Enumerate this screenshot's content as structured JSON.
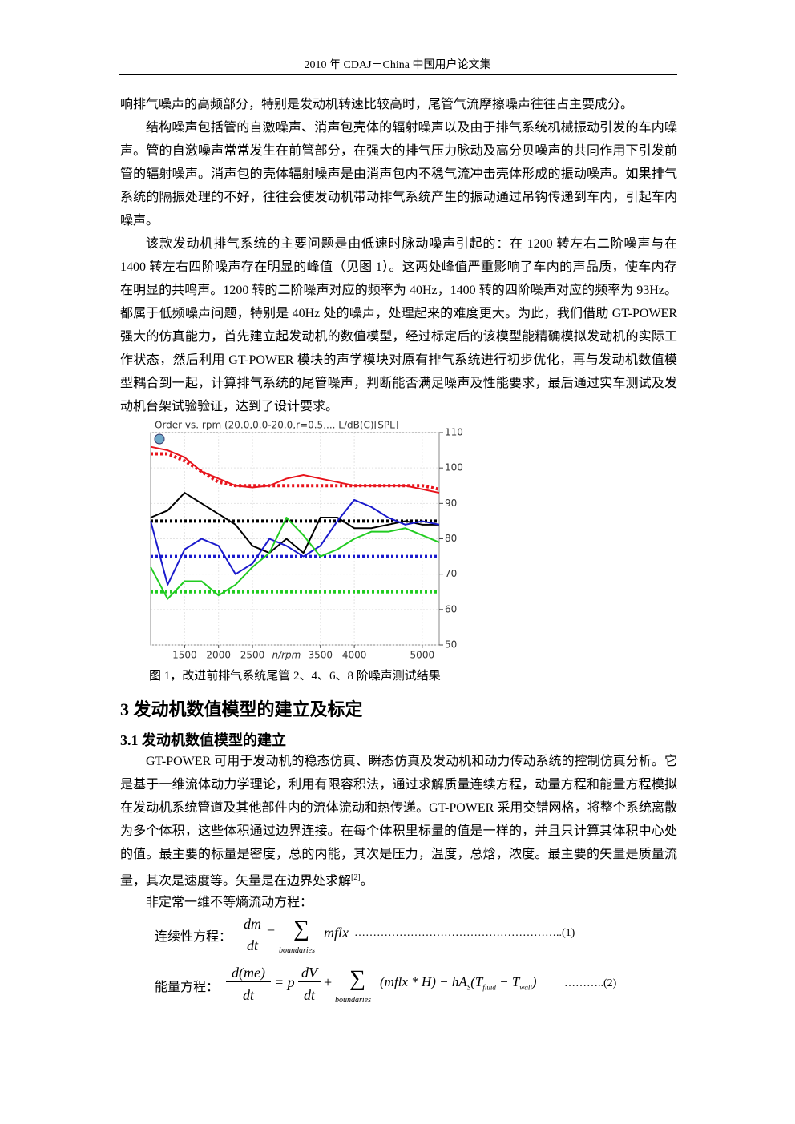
{
  "header": {
    "title": "2010 年  CDAJ－China  中国用户论文集"
  },
  "paragraphs": [
    {
      "text": "响排气噪声的高频部分，特别是发动机转速比较高时，尾管气流摩擦噪声往往占主要成分。"
    },
    {
      "text": "结构噪声包括管的自激噪声、消声包壳体的辐射噪声以及由于排气系统机械振动引发的车内噪声。管的自激噪声常常发生在前管部分，在强大的排气压力脉动及高分贝噪声的共同作用下引发前管的辐射噪声。消声包的壳体辐射噪声是由消声包内不稳气流冲击壳体形成的振动噪声。如果排气系统的隔振处理的不好，往往会使发动机带动排气系统产生的振动通过吊钩传递到车内，引起车内噪声。"
    },
    {
      "text": "该款发动机排气系统的主要问题是由低速时脉动噪声引起的：在 1200 转左右二阶噪声与在 1400 转左右四阶噪声存在明显的峰值（见图 1）。这两处峰值严重影响了车内的声品质，使车内存在明显的共鸣声。1200 转的二阶噪声对应的频率为 40Hz，1400 转的四阶噪声对应的频率为 93Hz。都属于低频噪声问题，特别是 40Hz 处的噪声，处理起来的难度更大。为此，我们借助 GT-POWER 强大的仿真能力，首先建立起发动机的数值模型，经过标定后的该模型能精确模拟发动机的实际工作状态，然后利用 GT-POWER 模块的声学模块对原有排气系统进行初步优化，再与发动机数值模型耦合到一起，计算排气系统的尾管噪声，判断能否满足噪声及性能要求，最后通过实车测试及发动机台架试验验证，达到了设计要求。"
    }
  ],
  "chart_data": {
    "type": "line",
    "title": "Order vs. rpm (20.0,0.0-20.0,r=0.5,...  L/dB(C)[SPL]",
    "x_label": "n/rpm",
    "x": [
      1000,
      1250,
      1500,
      1750,
      2000,
      2250,
      2500,
      2750,
      3000,
      3250,
      3500,
      3750,
      4000,
      4250,
      4500,
      4750,
      5000,
      5250
    ],
    "xlim": [
      1000,
      5250
    ],
    "xticks": [
      1500,
      2000,
      2500,
      3500,
      4000,
      5000
    ],
    "ylim": [
      50,
      110
    ],
    "yticks": [
      50,
      60,
      70,
      80,
      90,
      100,
      110
    ],
    "grid": true,
    "series": [
      {
        "color": "#e8141c",
        "style": "solid",
        "values": [
          106,
          105,
          103,
          99,
          97,
          95,
          94.5,
          95,
          97,
          98,
          97,
          96,
          95,
          95,
          95,
          95,
          94,
          93
        ]
      },
      {
        "color": "#e8141c",
        "style": "dotted",
        "values": [
          104,
          104,
          102,
          99,
          96,
          95,
          95,
          95,
          95,
          95,
          95,
          95,
          95,
          95,
          95,
          95,
          95,
          94
        ]
      },
      {
        "color": "#000000",
        "style": "solid",
        "values": [
          86,
          88,
          93,
          90,
          87,
          84,
          78,
          76,
          80,
          76,
          86,
          86,
          83,
          83,
          84,
          85,
          84,
          84
        ]
      },
      {
        "color": "#000000",
        "style": "dotted",
        "values": [
          85,
          85,
          85,
          85,
          85,
          85,
          85,
          85,
          85,
          85,
          85,
          85,
          85,
          85,
          85,
          85,
          85,
          85
        ]
      },
      {
        "color": "#1a1acc",
        "style": "solid",
        "values": [
          85,
          67,
          77,
          80,
          78,
          70,
          73,
          80,
          78,
          75,
          78,
          85,
          91,
          89,
          86,
          84,
          85,
          84
        ]
      },
      {
        "color": "#1a1acc",
        "style": "dotted",
        "values": [
          75,
          75,
          75,
          75,
          75,
          75,
          75,
          75,
          75,
          75,
          75,
          75,
          75,
          75,
          75,
          75,
          75,
          75
        ]
      },
      {
        "color": "#22cc22",
        "style": "solid",
        "values": [
          72,
          63,
          68,
          68,
          64,
          67,
          72,
          76,
          86,
          81,
          75,
          77,
          80,
          82,
          82,
          83,
          81,
          79
        ]
      },
      {
        "color": "#22cc22",
        "style": "dotted",
        "values": [
          65,
          65,
          65,
          65,
          65,
          65,
          65,
          65,
          65,
          65,
          65,
          65,
          65,
          65,
          65,
          65,
          65,
          65
        ]
      }
    ]
  },
  "figure": {
    "caption": "图 1，改进前排气系统尾管 2、4、6、8 阶噪声测试结果"
  },
  "section": {
    "heading": "3 发动机数值模型的建立及标定",
    "subheading": "3.1 发动机数值模型的建立",
    "paragraph": {
      "text": "GT-POWER 可用于发动机的稳态仿真、瞬态仿真及发动机和动力传动系统的控制仿真分析。它是基于一维流体动力学理论，利用有限容积法，通过求解质量连续方程，动量方程和能量方程模拟在发动机系统管道及其他部件内的流体流动和热传递。GT-POWER 采用交错网格，将整个系统离散为多个体积，这些体积通过边界连接。在每个体积里标量的值是一样的，并且只计算其体积中心处的值。最主要的标量是密度，总的内能，其次是压力，温度，总焓，浓度。最主要的矢量是质量流量，其次是速度等。矢量是在边界处求解",
      "ref": "[2]",
      "end": "。"
    },
    "intro": "非定常一维不等熵流动方程：",
    "equation1": {
      "label": "连续性方程：",
      "num": "dm",
      "den": "dt",
      "eq": "=",
      "sum": "∑",
      "sub": "boundaries",
      "term": "mflx",
      "tail": "………………………………………………..(1)"
    },
    "equation2": {
      "label": "能量方程：",
      "num": "d(me)",
      "den": "dt",
      "eq": "= p",
      "num2": "dV",
      "den2": "dt",
      "plus": "+",
      "sum": "∑",
      "sub": "boundaries",
      "term": "(mflx * H) − hA",
      "s": "S",
      "t1": "(T",
      "fluid": "fluid",
      "minus": " − T",
      "wall": "wall",
      "close": ")",
      "tail": "………..(2)"
    }
  }
}
